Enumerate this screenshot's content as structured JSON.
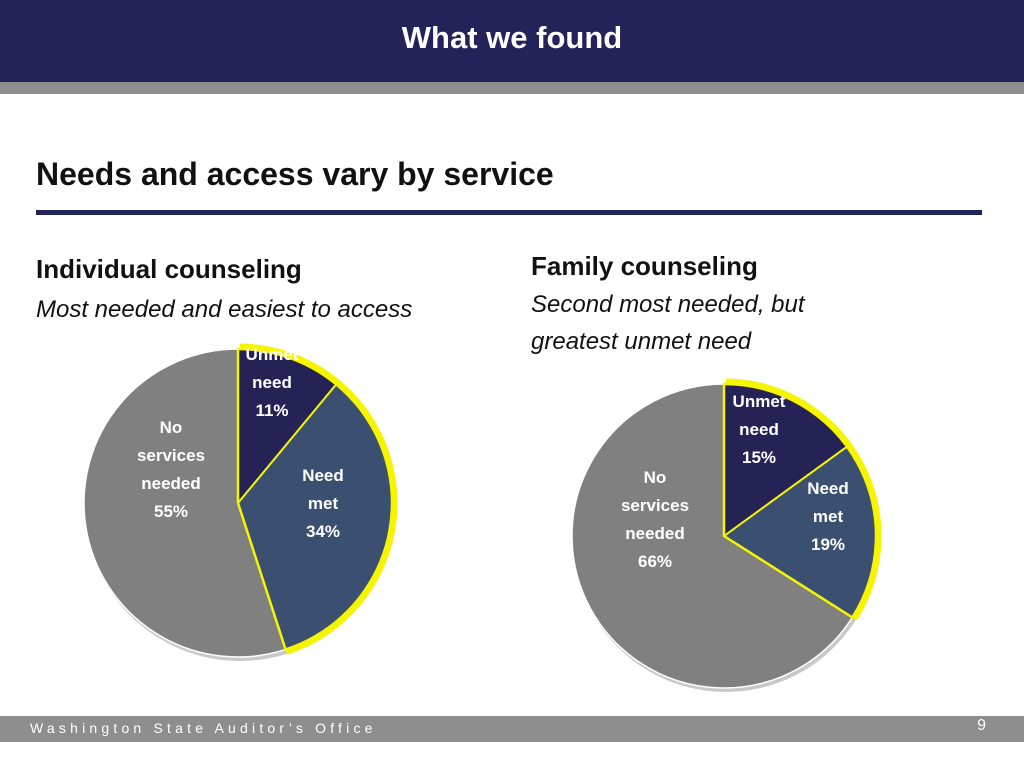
{
  "slide": {
    "title": "What we found",
    "heading": "Needs and access vary by service",
    "footer": "Washington State Auditor’s Office",
    "page_number": "9"
  },
  "colors": {
    "header": "#23235a",
    "stripe": "#8e8e8e",
    "unmet_need": "#252355",
    "need_met": "#3b5070",
    "no_services": "#808080",
    "highlight": "#f5f500"
  },
  "panels": [
    {
      "title": "Individual counseling",
      "subtitle": [
        "Most needed and easiest to access"
      ]
    },
    {
      "title": "Family counseling",
      "subtitle": [
        "Second most needed, but",
        "greatest unmet need"
      ]
    }
  ],
  "chart_data": [
    {
      "type": "pie",
      "title": "Individual counseling",
      "slices": [
        {
          "label": "Unmet need",
          "value": 11,
          "display": [
            "Unmet",
            "need",
            "11%"
          ]
        },
        {
          "label": "Need met",
          "value": 34,
          "display": [
            "Need",
            "met",
            "34%"
          ]
        },
        {
          "label": "No services needed",
          "value": 55,
          "display": [
            "No",
            "services",
            "needed",
            "55%"
          ]
        }
      ]
    },
    {
      "type": "pie",
      "title": "Family counseling",
      "slices": [
        {
          "label": "Unmet need",
          "value": 15,
          "display": [
            "Unmet",
            "need",
            "15%"
          ]
        },
        {
          "label": "Need met",
          "value": 19,
          "display": [
            "Need",
            "met",
            "19%"
          ]
        },
        {
          "label": "No services needed",
          "value": 66,
          "display": [
            "No",
            "services",
            "needed",
            "66%"
          ]
        }
      ]
    }
  ]
}
